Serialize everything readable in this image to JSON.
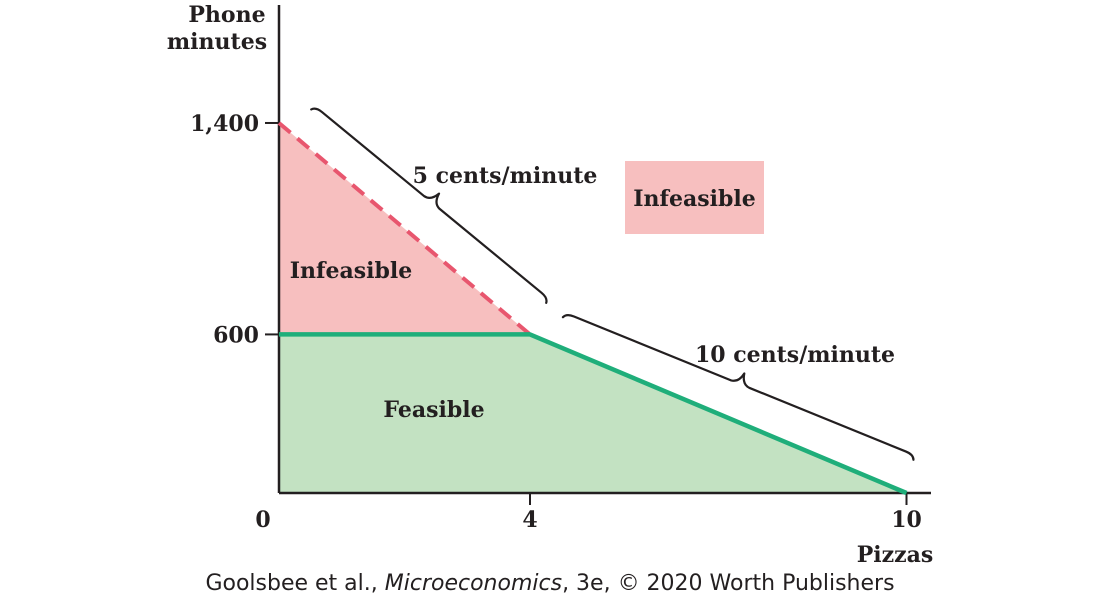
{
  "colors": {
    "feasible_fill": "#c3e2c2",
    "infeasible_fill": "#f7bfbf",
    "budget_line": "#1fae7a",
    "dashed_line": "#e8566e",
    "axis": "#231f20",
    "text": "#231f20"
  },
  "chart_data": {
    "type": "line",
    "x": [
      0,
      4,
      10
    ],
    "xlabel": "Pizzas",
    "ylabel_line1": "Phone",
    "ylabel_line2": "minutes",
    "xlim": [
      0,
      10.4
    ],
    "ylim": [
      0,
      2150
    ],
    "xticks": [
      {
        "value": 0,
        "label": "0"
      },
      {
        "value": 4,
        "label": "4"
      },
      {
        "value": 10,
        "label": "10"
      }
    ],
    "yticks": [
      {
        "value": 600,
        "label": "600"
      },
      {
        "value": 1400,
        "label": "1,400"
      }
    ],
    "dashed_segment": [
      [
        0,
        1400
      ],
      [
        4,
        600
      ]
    ],
    "budget_constraint": [
      [
        0,
        600
      ],
      [
        4,
        600
      ],
      [
        10,
        0
      ]
    ],
    "regions": {
      "feasible": {
        "label": "Feasible",
        "polygon": [
          [
            0,
            0
          ],
          [
            0,
            600
          ],
          [
            4,
            600
          ],
          [
            10,
            0
          ]
        ]
      },
      "infeasible_triangle": {
        "label": "Infeasible",
        "polygon": [
          [
            0,
            600
          ],
          [
            0,
            1400
          ],
          [
            4,
            600
          ]
        ]
      },
      "infeasible_legend": {
        "label": "Infeasible"
      }
    },
    "annotations": [
      {
        "label": "5 cents/minute",
        "from": [
          0,
          1400
        ],
        "to": [
          4,
          600
        ]
      },
      {
        "label": "10 cents/minute",
        "from": [
          4,
          600
        ],
        "to": [
          10,
          0
        ]
      }
    ],
    "grid": false
  },
  "credit": {
    "before": "Goolsbee et al., ",
    "title": "Microeconomics",
    "after": ", 3e, © 2020 Worth Publishers"
  }
}
